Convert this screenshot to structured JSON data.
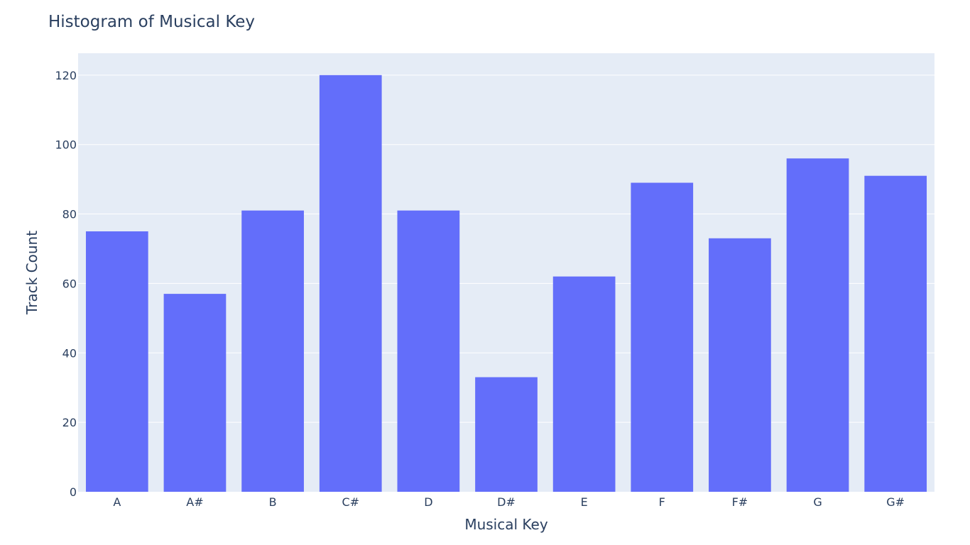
{
  "chart_data": {
    "type": "bar",
    "title": "Histogram of Musical Key",
    "xlabel": "Musical Key",
    "ylabel": "Track Count",
    "categories": [
      "A",
      "A#",
      "B",
      "C#",
      "D",
      "D#",
      "E",
      "F",
      "F#",
      "G",
      "G#"
    ],
    "values": [
      75,
      57,
      81,
      120,
      81,
      33,
      62,
      89,
      73,
      96,
      91
    ],
    "ylim": [
      0,
      126.3
    ],
    "yticks": [
      0,
      20,
      40,
      60,
      80,
      100,
      120
    ],
    "grid": true,
    "legend": "none",
    "bar_color": "#636efa",
    "plot_background": "#e5ecf6",
    "text_color": "#2a3f5f"
  }
}
